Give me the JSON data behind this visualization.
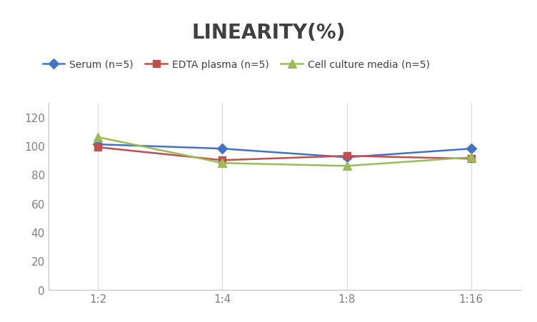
{
  "title": "LINEARITY(%)",
  "x_labels": [
    "1:2",
    "1:4",
    "1:8",
    "1:16"
  ],
  "x_positions": [
    0,
    1,
    2,
    3
  ],
  "series": [
    {
      "label": "Serum (n=5)",
      "values": [
        101,
        98,
        92,
        98
      ],
      "color": "#4472C4",
      "marker": "D",
      "markersize": 7,
      "linewidth": 1.8
    },
    {
      "label": "EDTA plasma (n=5)",
      "values": [
        99,
        90,
        93,
        91
      ],
      "color": "#C0504D",
      "marker": "s",
      "markersize": 7,
      "linewidth": 1.8
    },
    {
      "label": "Cell culture media (n=5)",
      "values": [
        106,
        88,
        86,
        92
      ],
      "color": "#9BBB59",
      "marker": "^",
      "markersize": 8,
      "linewidth": 1.8
    }
  ],
  "ylim": [
    0,
    130
  ],
  "yticks": [
    0,
    20,
    40,
    60,
    80,
    100,
    120
  ],
  "grid_color": "#D9D9D9",
  "background_color": "#FFFFFF",
  "title_fontsize": 20,
  "title_fontweight": "bold",
  "title_color": "#404040",
  "legend_fontsize": 10,
  "tick_fontsize": 11,
  "tick_color": "#808080"
}
